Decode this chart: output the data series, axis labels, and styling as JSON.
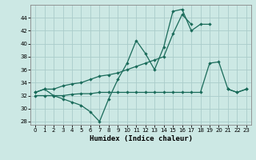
{
  "xlabel": "Humidex (Indice chaleur)",
  "background_color": "#cce8e4",
  "grid_color": "#aaccca",
  "line_color": "#1a6b5a",
  "line1_y": [
    32.5,
    33.0,
    32.0,
    31.5,
    31.0,
    30.5,
    29.5,
    28.0,
    31.5,
    34.5,
    37.0,
    40.5,
    38.5,
    36.0,
    39.5,
    45.0,
    45.3,
    42.0,
    43.0,
    43.0,
    null,
    33.0,
    32.5,
    33.0
  ],
  "line2_y": [
    32.5,
    33.0,
    33.0,
    33.5,
    33.8,
    34.0,
    34.5,
    35.0,
    35.2,
    35.5,
    36.0,
    36.5,
    37.0,
    37.5,
    38.0,
    41.5,
    44.5,
    43.0,
    null,
    null,
    null,
    null,
    null,
    null
  ],
  "line3_y": [
    32.0,
    32.0,
    32.0,
    32.0,
    32.2,
    32.3,
    32.3,
    32.5,
    32.5,
    32.5,
    32.5,
    32.5,
    32.5,
    32.5,
    32.5,
    32.5,
    32.5,
    32.5,
    32.5,
    37.0,
    37.2,
    33.0,
    32.5,
    33.0
  ],
  "xlim": [
    -0.5,
    23.5
  ],
  "ylim": [
    27.5,
    46.0
  ],
  "yticks": [
    28,
    30,
    32,
    34,
    36,
    38,
    40,
    42,
    44
  ],
  "xticks": [
    0,
    1,
    2,
    3,
    4,
    5,
    6,
    7,
    8,
    9,
    10,
    11,
    12,
    13,
    14,
    15,
    16,
    17,
    18,
    19,
    20,
    21,
    22,
    23
  ],
  "xtick_labels": [
    "0",
    "1",
    "2",
    "3",
    "4",
    "5",
    "6",
    "7",
    "8",
    "9",
    "10",
    "11",
    "12",
    "13",
    "14",
    "15",
    "16",
    "17",
    "18",
    "19",
    "20",
    "21",
    "22",
    "23"
  ],
  "lw": 0.9,
  "ms": 2.2
}
